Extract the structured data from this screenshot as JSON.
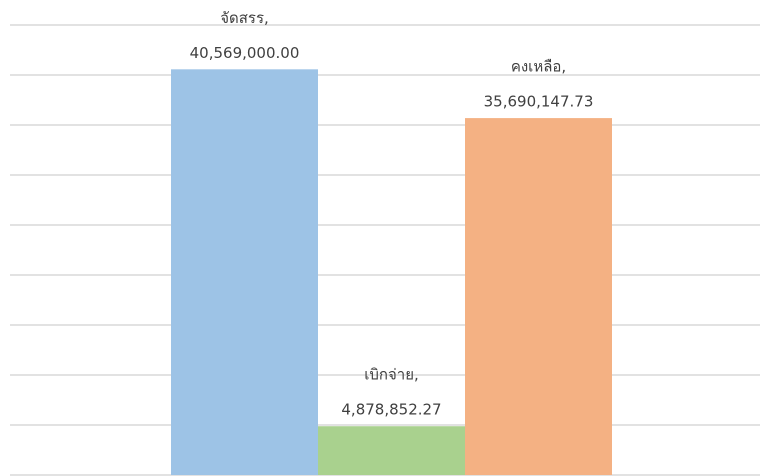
{
  "chart_data": {
    "type": "bar",
    "categories": [
      "จัดสรร,",
      "เบิกจ่าย,",
      "คงเหลือ,"
    ],
    "values": [
      40569000.0,
      4878852.27,
      35690147.73
    ],
    "value_labels": [
      "40,569,000.00",
      "4,878,852.27",
      "35,690,147.73"
    ],
    "colors": [
      "#9dc3e6",
      "#a9d18e",
      "#f4b183"
    ],
    "ylim": [
      0,
      47500000
    ],
    "yticks": [
      0,
      5000000,
      10000000,
      15000000,
      20000000,
      25000000,
      30000000,
      35000000,
      40000000,
      45000000
    ],
    "grid": true
  }
}
